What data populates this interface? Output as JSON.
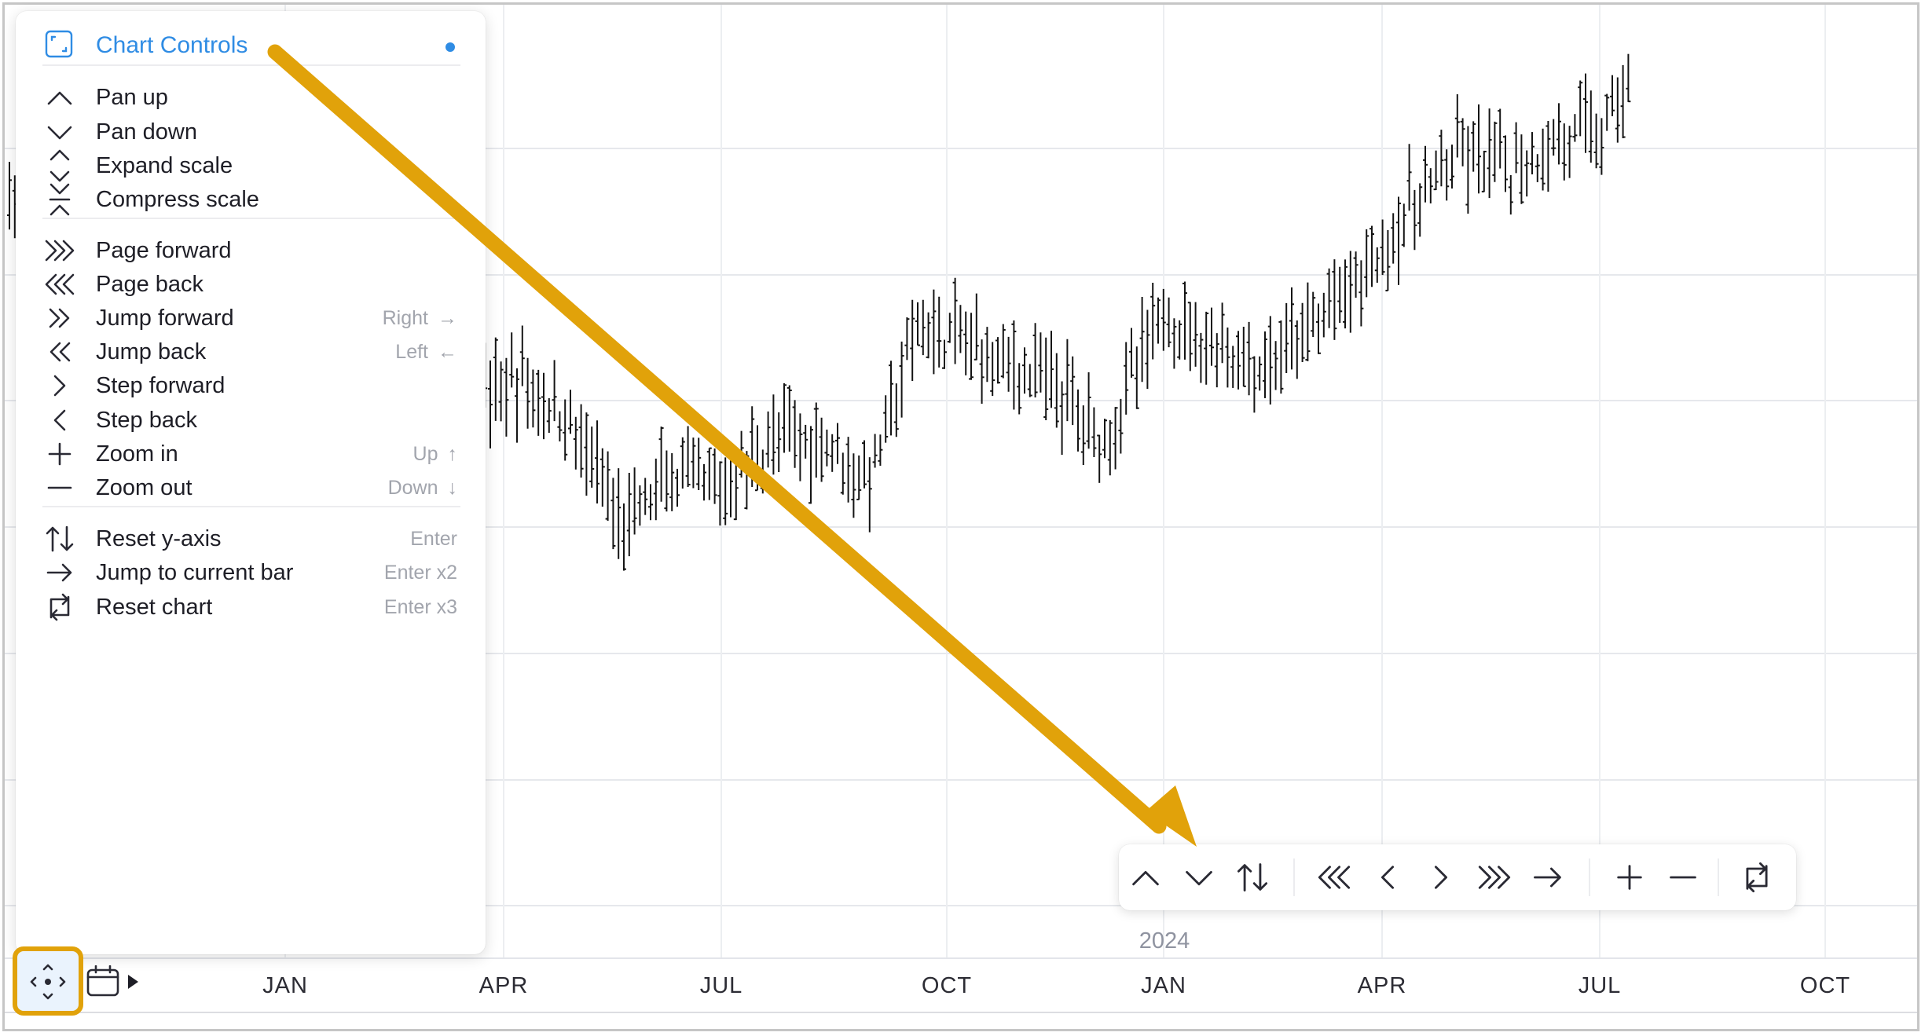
{
  "menu": {
    "title": "Chart Controls",
    "groups": [
      [
        {
          "id": "pan-up",
          "label": "Pan up",
          "shortcut": "",
          "icon": "chevron-up-icon"
        },
        {
          "id": "pan-down",
          "label": "Pan down",
          "shortcut": "",
          "icon": "chevron-down-icon"
        },
        {
          "id": "expand-scale",
          "label": "Expand scale",
          "shortcut": "",
          "icon": "expand-vertical-icon"
        },
        {
          "id": "compress-scale",
          "label": "Compress scale",
          "shortcut": "",
          "icon": "compress-vertical-icon"
        }
      ],
      [
        {
          "id": "page-forward",
          "label": "Page forward",
          "shortcut": "",
          "icon": "triple-chevron-right-icon"
        },
        {
          "id": "page-back",
          "label": "Page back",
          "shortcut": "",
          "icon": "triple-chevron-left-icon"
        },
        {
          "id": "jump-forward",
          "label": "Jump forward",
          "shortcut": "Right",
          "shortcut_arrow": "→",
          "icon": "double-chevron-right-icon"
        },
        {
          "id": "jump-back",
          "label": "Jump back",
          "shortcut": "Left",
          "shortcut_arrow": "←",
          "icon": "double-chevron-left-icon"
        },
        {
          "id": "step-forward",
          "label": "Step forward",
          "shortcut": "",
          "icon": "chevron-right-icon"
        },
        {
          "id": "step-back",
          "label": "Step back",
          "shortcut": "",
          "icon": "chevron-left-icon"
        },
        {
          "id": "zoom-in",
          "label": "Zoom in",
          "shortcut": "Up",
          "shortcut_arrow": "↑",
          "icon": "plus-icon"
        },
        {
          "id": "zoom-out",
          "label": "Zoom out",
          "shortcut": "Down",
          "shortcut_arrow": "↓",
          "icon": "minus-icon"
        }
      ],
      [
        {
          "id": "reset-y-axis",
          "label": "Reset y-axis",
          "shortcut": "Enter",
          "icon": "up-down-arrows-icon"
        },
        {
          "id": "jump-to-current-bar",
          "label": "Jump to current bar",
          "shortcut": "Enter x2",
          "icon": "arrow-right-icon"
        },
        {
          "id": "reset-chart",
          "label": "Reset chart",
          "shortcut": "Enter x3",
          "icon": "reset-icon"
        }
      ]
    ]
  },
  "toolbar": {
    "buttons": [
      "chevron-up-icon",
      "chevron-down-icon",
      "up-down-arrows-icon",
      "triple-chevron-left-icon",
      "chevron-left-icon",
      "chevron-right-icon",
      "triple-chevron-right-icon",
      "arrow-right-icon",
      "plus-icon",
      "minus-icon",
      "reset-icon"
    ]
  },
  "xaxis": {
    "ticks": [
      "JAN",
      "APR",
      "JUL",
      "OCT",
      "JAN",
      "APR",
      "JUL",
      "OCT"
    ],
    "year_label": "2024"
  },
  "colors": {
    "accent": "#2f8ce4",
    "highlight": "#e1a20a",
    "bar": "#141414",
    "annotation_arrow": "#e1a20a"
  },
  "chart_data": {
    "type": "ohlc",
    "x_ticks": [
      "JAN",
      "APR",
      "JUL",
      "OCT",
      "JAN",
      "APR",
      "JUL",
      "OCT"
    ],
    "year_marker": "2024",
    "trend_waypoints": [
      {
        "t": 0.0,
        "v": 0.95
      },
      {
        "t": 0.03,
        "v": 0.74
      },
      {
        "t": 0.07,
        "v": 0.82
      },
      {
        "t": 0.1,
        "v": 0.67
      },
      {
        "t": 0.13,
        "v": 0.56
      },
      {
        "t": 0.16,
        "v": 0.62
      },
      {
        "t": 0.19,
        "v": 0.65
      },
      {
        "t": 0.21,
        "v": 0.68
      },
      {
        "t": 0.23,
        "v": 0.62
      },
      {
        "t": 0.25,
        "v": 0.48
      },
      {
        "t": 0.27,
        "v": 0.55
      },
      {
        "t": 0.29,
        "v": 0.53
      },
      {
        "t": 0.31,
        "v": 0.6
      },
      {
        "t": 0.335,
        "v": 0.6
      },
      {
        "t": 0.35,
        "v": 0.54
      },
      {
        "t": 0.37,
        "v": 0.75
      },
      {
        "t": 0.39,
        "v": 0.73
      },
      {
        "t": 0.41,
        "v": 0.7
      },
      {
        "t": 0.43,
        "v": 0.66
      },
      {
        "t": 0.445,
        "v": 0.6
      },
      {
        "t": 0.47,
        "v": 0.77
      },
      {
        "t": 0.49,
        "v": 0.73
      },
      {
        "t": 0.51,
        "v": 0.69
      },
      {
        "t": 0.53,
        "v": 0.75
      },
      {
        "t": 0.55,
        "v": 0.82
      },
      {
        "t": 0.57,
        "v": 0.91
      },
      {
        "t": 0.59,
        "v": 0.98
      },
      {
        "t": 0.61,
        "v": 0.96
      },
      {
        "t": 0.63,
        "v": 1.0
      },
      {
        "t": 0.65,
        "v": 1.02
      },
      {
        "t": 0.66,
        "v": 1.1
      }
    ]
  }
}
